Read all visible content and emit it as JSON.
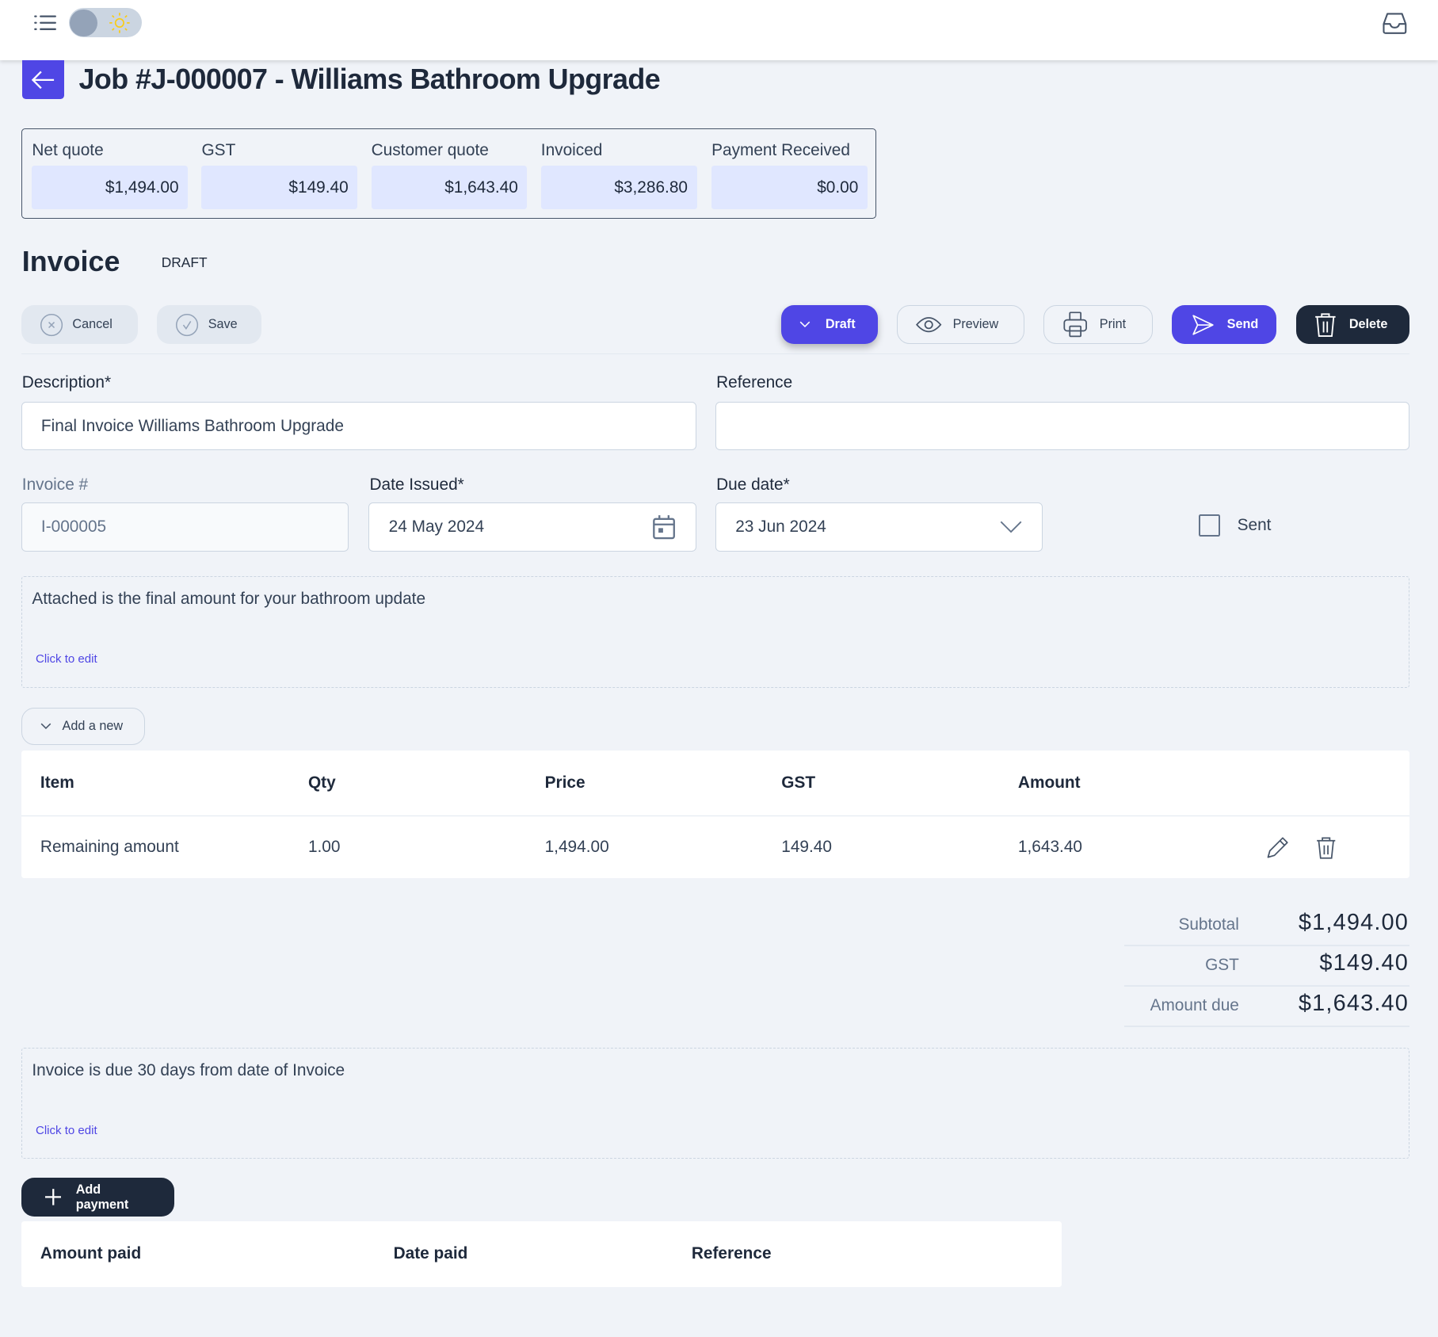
{
  "header": {
    "menu_icon": "list-icon",
    "theme_toggle": "sun-icon",
    "inbox_icon": "inbox-icon"
  },
  "page": {
    "title": "Job #J-000007 - Williams Bathroom Upgrade"
  },
  "summary": [
    {
      "label": "Net quote",
      "value": "$1,494.00"
    },
    {
      "label": "GST",
      "value": "$149.40"
    },
    {
      "label": "Customer quote",
      "value": "$1,643.40"
    },
    {
      "label": "Invoiced",
      "value": "$3,286.80"
    },
    {
      "label": "Payment Received",
      "value": "$0.00"
    }
  ],
  "invoice": {
    "heading": "Invoice",
    "status": "DRAFT"
  },
  "toolbar": {
    "cancel": "Cancel",
    "save": "Save",
    "draft": "Draft",
    "preview": "Preview",
    "print": "Print",
    "send": "Send",
    "delete": "Delete"
  },
  "form": {
    "description_label": "Description*",
    "description_value": "Final Invoice Williams Bathroom Upgrade",
    "reference_label": "Reference",
    "reference_value": "",
    "invoice_no_label": "Invoice #",
    "invoice_no_value": "I-000005",
    "date_issued_label": "Date Issued*",
    "date_issued_value": "24 May 2024",
    "due_date_label": "Due date*",
    "due_date_value": "23 Jun 2024",
    "sent_label": "Sent",
    "sent_checked": false
  },
  "note1": {
    "text": "Attached is the final amount for your bathroom update",
    "edit": "Click to edit"
  },
  "add_new": "Add a new",
  "items": {
    "columns": [
      "Item",
      "Qty",
      "Price",
      "GST",
      "Amount"
    ],
    "rows": [
      {
        "item": "Remaining amount",
        "qty": "1.00",
        "price": "1,494.00",
        "gst": "149.40",
        "amount": "1,643.40"
      }
    ]
  },
  "totals": [
    {
      "label": "Subtotal",
      "value": "$1,494.00"
    },
    {
      "label": "GST",
      "value": "$149.40"
    },
    {
      "label": "Amount due",
      "value": "$1,643.40"
    }
  ],
  "note2": {
    "text": "Invoice is due 30 days from date of Invoice",
    "edit": "Click to edit"
  },
  "add_payment": "Add payment",
  "payments": {
    "columns": [
      "Amount paid",
      "Date paid",
      "Reference"
    ]
  },
  "colors": {
    "accent": "#4f46e5",
    "dark": "#1e293b",
    "summary_bg": "#e0e7ff",
    "page_bg": "#f0f3f8"
  }
}
